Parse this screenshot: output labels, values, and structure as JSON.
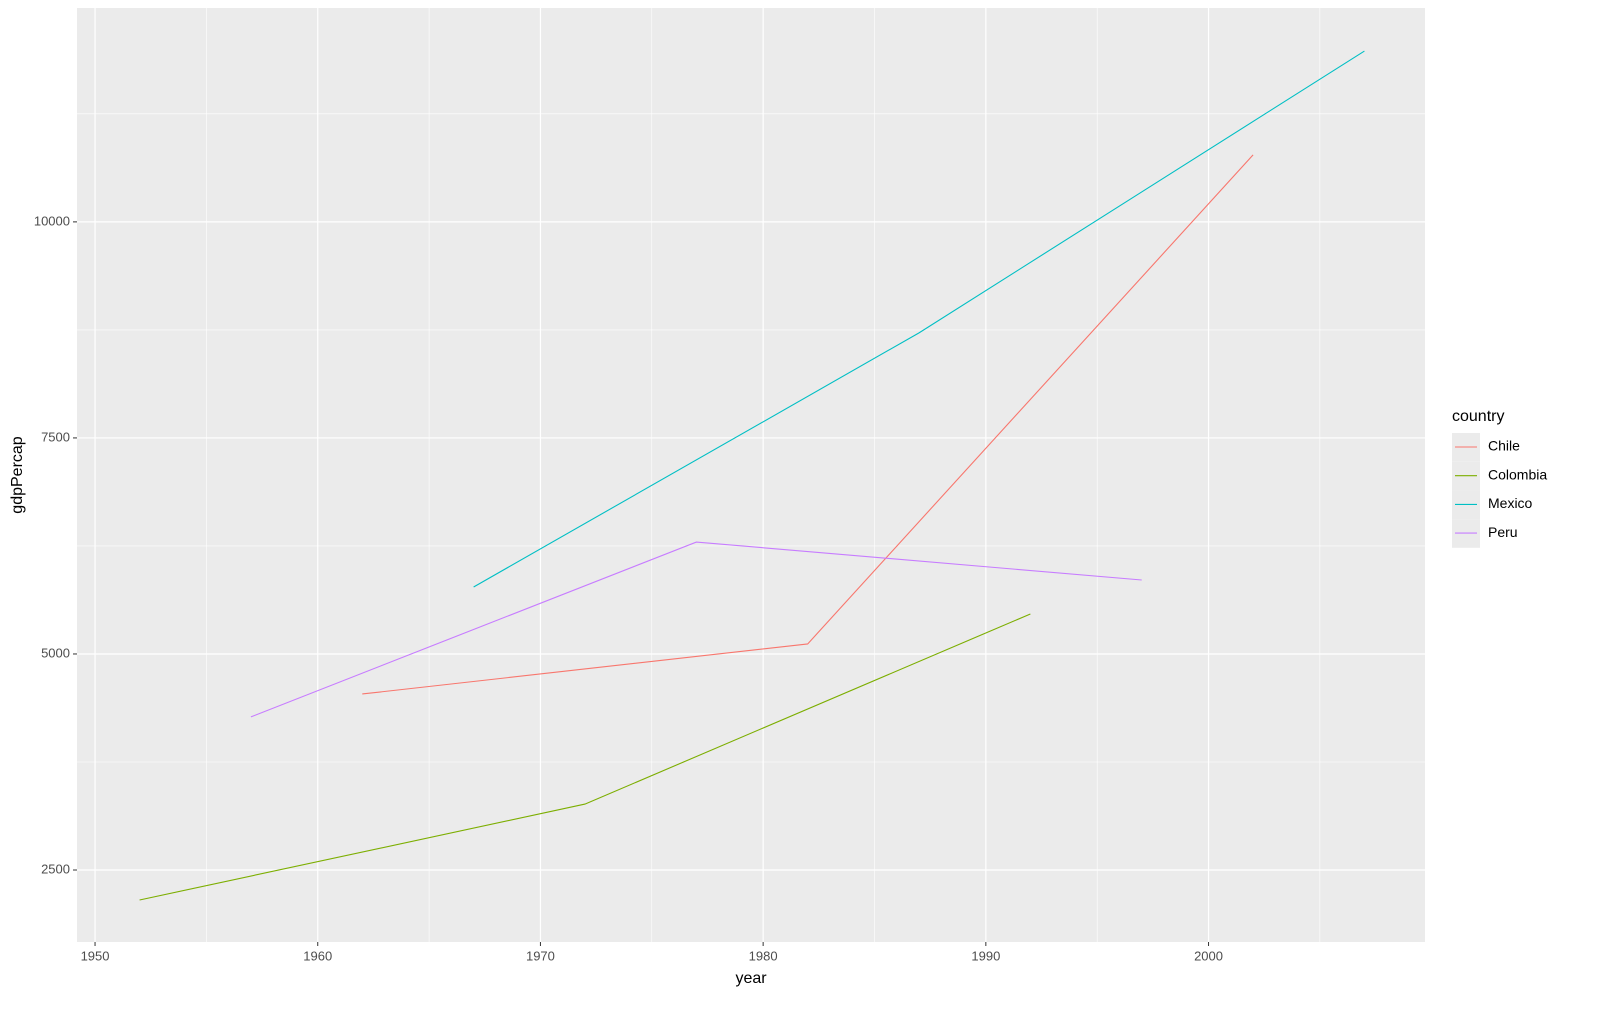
{
  "chart_data": {
    "type": "line",
    "x_label": "year",
    "y_label": "gdpPercap",
    "legend_title": "country",
    "series": [
      {
        "name": "Chile",
        "color": "#F8766D",
        "x": [
          1962,
          1982,
          2002
        ],
        "values": [
          4537,
          5116,
          10775
        ]
      },
      {
        "name": "Colombia",
        "color": "#7CAE00",
        "x": [
          1952,
          1972,
          1992
        ],
        "values": [
          2153,
          3263,
          5463
        ]
      },
      {
        "name": "Mexico",
        "color": "#00BFC4",
        "x": [
          1967,
          1987,
          2007
        ],
        "values": [
          5775,
          8716,
          11977
        ]
      },
      {
        "name": "Peru",
        "color": "#C77CFF",
        "x": [
          1957,
          1977,
          1997
        ],
        "values": [
          4272,
          6295,
          5856
        ]
      }
    ],
    "xlim": [
      1949.19,
      2009.72
    ],
    "xticks": [
      1950,
      1960,
      1970,
      1980,
      1990,
      2000
    ],
    "ylim": [
      1667,
      12475
    ],
    "yticks": [
      2500,
      5000,
      7500,
      10000
    ],
    "grid": true,
    "legend": "right"
  }
}
